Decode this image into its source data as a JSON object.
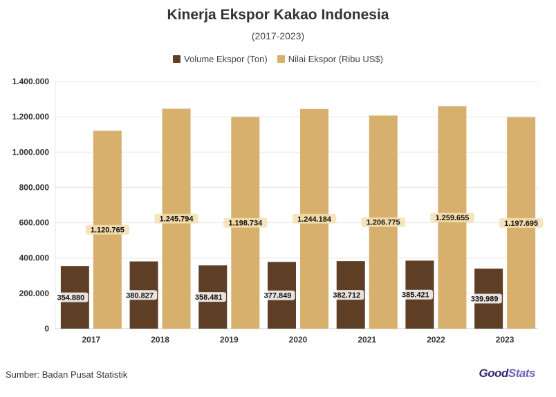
{
  "chart_data": {
    "type": "bar",
    "title": "Kinerja Ekspor Kakao Indonesia",
    "subtitle": "(2017-2023)",
    "categories": [
      "2017",
      "2018",
      "2019",
      "2020",
      "2021",
      "2022",
      "2023"
    ],
    "series": [
      {
        "name": "Volume Ekspor (Ton)",
        "color": "#5e3f25",
        "values": [
          354880,
          380827,
          358481,
          377849,
          382712,
          385421,
          339989
        ],
        "labels": [
          "354.880",
          "380.827",
          "358.481",
          "377.849",
          "382.712",
          "385.421",
          "339.989"
        ]
      },
      {
        "name": "Nilai Ekspor (Ribu US$)",
        "color": "#d8b06d",
        "values": [
          1120765,
          1245794,
          1198734,
          1244184,
          1206775,
          1259655,
          1197695
        ],
        "labels": [
          "1.120.765",
          "1.245.794",
          "1.198.734",
          "1.244.184",
          "1.206.775",
          "1.259.655",
          "1.197.695"
        ]
      }
    ],
    "ylim": [
      0,
      1400000
    ],
    "yticks": [
      0,
      200000,
      400000,
      600000,
      800000,
      1000000,
      1200000,
      1400000
    ],
    "ytick_labels": [
      "0",
      "200.000",
      "400.000",
      "600.000",
      "800.000",
      "1.000.000",
      "1.200.000",
      "1.400.000"
    ],
    "legend_position": "top-center",
    "grid": true
  },
  "footer": {
    "source": "Sumber: Badan Pusat Statistik",
    "brand_part1": "Good",
    "brand_part2": "Stats"
  }
}
